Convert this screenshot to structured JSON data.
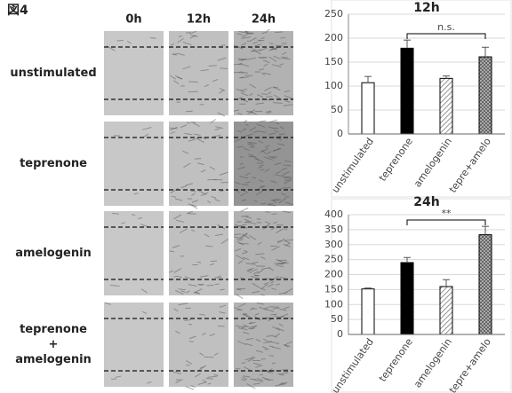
{
  "figure_label": "図4",
  "columns": [
    "0h",
    "12h",
    "24h"
  ],
  "rows": [
    [
      "unstimulated"
    ],
    [
      "teprenone"
    ],
    [
      "amelogenin"
    ],
    [
      "teprenone",
      "+",
      "amelogenin"
    ]
  ],
  "chart_data": [
    {
      "type": "bar",
      "title": "12h",
      "categories": [
        "unstimulated",
        "teprenone",
        "amelogenin",
        "tepre+amelo"
      ],
      "values": [
        107,
        179,
        116,
        161
      ],
      "errors": [
        13,
        17,
        5,
        20
      ],
      "fills": [
        "white",
        "black",
        "hatch",
        "check"
      ],
      "ylim": [
        0,
        250
      ],
      "yticks": [
        0,
        50,
        100,
        150,
        200,
        250
      ],
      "grid": true,
      "annotation": "n.s.",
      "annotation_between": [
        "teprenone",
        "tepre+amelo"
      ]
    },
    {
      "type": "bar",
      "title": "24h",
      "categories": [
        "unstimulated",
        "teprenone",
        "amelogenin",
        "tepre+amelo"
      ],
      "values": [
        152,
        240,
        160,
        333
      ],
      "errors": [
        3,
        17,
        23,
        28
      ],
      "fills": [
        "white",
        "black",
        "hatch",
        "check"
      ],
      "ylim": [
        0,
        400
      ],
      "yticks": [
        0,
        50,
        100,
        150,
        200,
        250,
        300,
        350,
        400
      ],
      "grid": true,
      "annotation": "**",
      "annotation_between": [
        "teprenone",
        "tepre+amelo"
      ]
    }
  ]
}
